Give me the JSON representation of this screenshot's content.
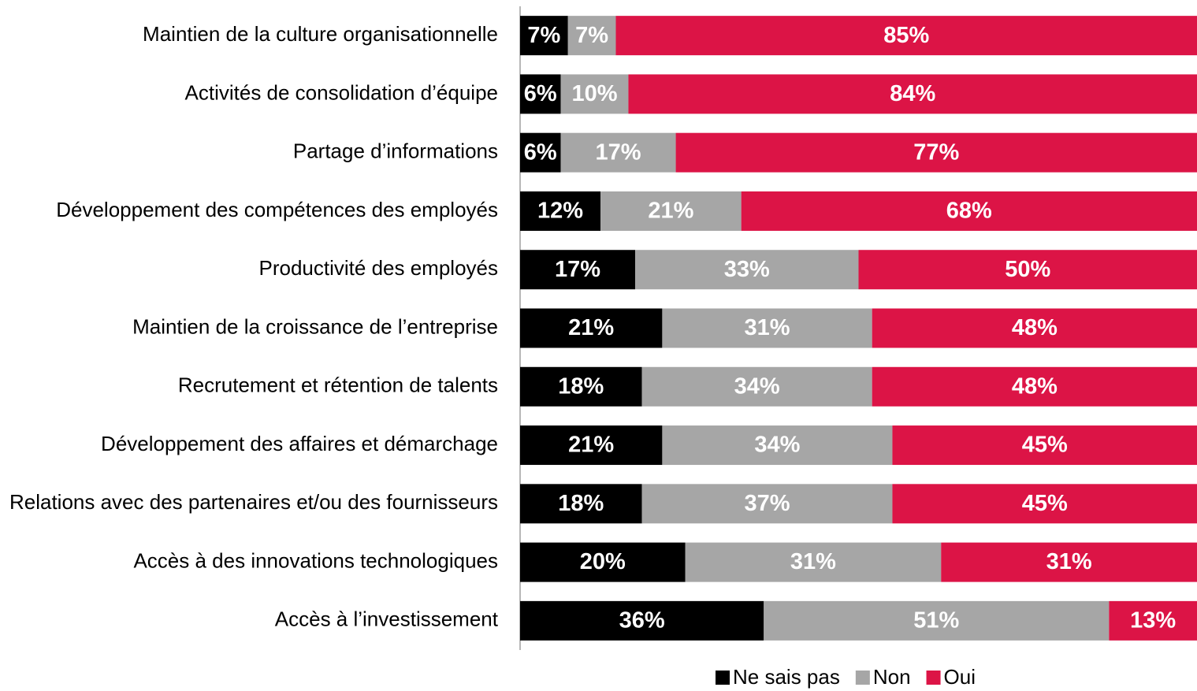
{
  "chart_data": {
    "type": "bar",
    "orientation": "horizontal",
    "stacked": "percent",
    "legend": "bottom",
    "categories": [
      "Maintien de la culture organisationnelle",
      "Activités de consolidation d’équipe",
      "Partage d’informations",
      "Développement des compétences des employés",
      "Productivité des employés",
      "Maintien de la croissance de l’entreprise",
      "Recrutement et rétention de talents",
      "Développement des affaires et démarchage",
      "Relations avec des partenaires et/ou des fournisseurs",
      "Accès à des innovations technologiques",
      "Accès à l’investissement"
    ],
    "series": [
      {
        "name": "Ne sais pas",
        "color": "#000000",
        "values": [
          7,
          6,
          6,
          12,
          17,
          21,
          18,
          21,
          18,
          20,
          36
        ],
        "value_labels": [
          "7%",
          "6%",
          "6%",
          "12%",
          "17%",
          "21%",
          "18%",
          "21%",
          "18%",
          "20%",
          "36%"
        ]
      },
      {
        "name": "Non",
        "color": "#a6a6a6",
        "values": [
          7,
          10,
          17,
          21,
          33,
          31,
          34,
          34,
          37,
          31,
          51
        ],
        "value_labels": [
          "7%",
          "10%",
          "17%",
          "21%",
          "33%",
          "31%",
          "34%",
          "34%",
          "37%",
          "31%",
          "51%"
        ]
      },
      {
        "name": "Oui",
        "color": "#dc1446",
        "values": [
          85,
          84,
          77,
          68,
          50,
          48,
          48,
          45,
          45,
          31,
          13
        ],
        "value_labels": [
          "85%",
          "84%",
          "77%",
          "68%",
          "50%",
          "48%",
          "48%",
          "45%",
          "45%",
          "31%",
          "13%"
        ]
      }
    ]
  }
}
